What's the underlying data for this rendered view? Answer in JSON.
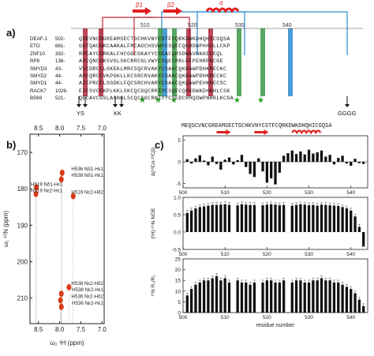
{
  "panel_a": {
    "label": "a)",
    "ruler_marks": [
      "510",
      "520",
      "530",
      "540"
    ],
    "secondary_structure": [
      "β1",
      "β2",
      "α"
    ],
    "sequences": [
      {
        "name": "DEAF-1",
        "start": "502-",
        "residues": "QSEVNCRGREAMSECTGCHKVNYCSTFCQRKDWKDHQHICGQSA"
      },
      {
        "name": "ETO",
        "start": "661-",
        "residues": "GKTQACNKCAAKALFMCAGCHSVWYCSQECQKHDWPHHSLLCKP"
      },
      {
        "name": "ZNF10",
        "start": "392-",
        "residues": "RPCAYCGRKALFHCGGCGKAYYCSEACQRSDWAVHKKECEQL"
      },
      {
        "name": "RP8",
        "start": "136-",
        "residues": "ASCQNCGKSVGLSKCRRCGLVWYCSQECRRLDFPEHRPHCGE"
      },
      {
        "name": "SMYD3",
        "start": "43-",
        "residues": "VVCDRCLLGKEKLMRCSQCRVAKYCSAKCQKKAWPDHKRECKC"
      },
      {
        "name": "SMYD2",
        "start": "44-",
        "residues": "AHCQRCFVKPGKLLKCSRCRVAKYCSAKCQKKAWPDHKRECKC"
      },
      {
        "name": "SMYD1",
        "start": "44-",
        "residues": "AICPRCFLSGDKLFQCSRCHVARYCSAKCQKQAWPEHKKECSC"
      },
      {
        "name": "RACK7",
        "start": "1026-",
        "residues": "EICSVCEKPLKKLSKCQCGQCRRIYCSQECQRKDWKDHKHLCSK"
      },
      {
        "name": "BS69",
        "start": "521-",
        "residues": "QECAVCGSLASNGLSCQCGGCRNIYYCSEDCRHQDWPNHRLKCGA"
      }
    ],
    "mutations_bottom": [
      "YS",
      "KK",
      "GGGG"
    ]
  },
  "panel_b": {
    "label": "b)",
    "x_axis_label": "ω₂ ¹H (ppm)",
    "y_axis_label": "ω₁ ¹⁵N (ppm)",
    "x_ticks": [
      "8.5",
      "8.0",
      "7.5",
      "7.0"
    ],
    "y_ticks": [
      "170",
      "180",
      "190",
      "200",
      "210"
    ],
    "peaks": [
      {
        "label": "H536 Nδ1-Hε1",
        "h": 7.94,
        "n": 175.6
      },
      {
        "label": "H538 Nδ1-Hε1",
        "h": 7.96,
        "n": 177.4
      },
      {
        "label": "H519 Nδ1-Hε1",
        "h": 8.55,
        "n": 179.6
      },
      {
        "label": "H519 Nε2-Hε1",
        "h": 8.56,
        "n": 181.4
      },
      {
        "label": "H519 Nε2-Hδ2",
        "h": 7.68,
        "n": 182.0
      },
      {
        "label": "H538 Nε2-Hδ2",
        "h": 7.78,
        "n": 207.0
      },
      {
        "label": "H538 Nε2-Hε1",
        "h": 7.96,
        "n": 208.8
      },
      {
        "label": "H536 Nε2-Hδ2",
        "h": 7.98,
        "n": 210.6
      },
      {
        "label": "H536 Nε2-Hε1",
        "h": 7.96,
        "n": 212.4
      }
    ]
  },
  "panel_c": {
    "label": "c)",
    "sequence": "MEQSCVNCGREAMSECTGCHKVNYCSTFCQRKDWKDHQHICGQSA",
    "x_label": "residue number",
    "x_ticks": [
      "500",
      "510",
      "520",
      "530",
      "540"
    ],
    "chart_data": [
      {
        "type": "bar",
        "title": "",
        "ylabel": "Δ(¹³Cα-¹³Cβ)",
        "ylim": [
          -6,
          6
        ],
        "y_ticks": [
          "5",
          "0",
          "-5"
        ],
        "x": [
          501,
          502,
          503,
          504,
          505,
          506,
          507,
          508,
          509,
          510,
          511,
          512,
          513,
          514,
          515,
          516,
          517,
          518,
          519,
          520,
          521,
          522,
          523,
          524,
          525,
          526,
          527,
          528,
          529,
          530,
          531,
          532,
          533,
          534,
          535,
          536,
          537,
          538,
          539,
          540,
          541,
          542,
          543
        ],
        "values": [
          0.6,
          -0.4,
          0.8,
          1.5,
          0.3,
          -0.8,
          1.2,
          -0.5,
          -1.8,
          0.5,
          1.0,
          -0.6,
          0.4,
          1.6,
          -1.2,
          -2.8,
          -3.5,
          0.8,
          -2.2,
          -4.8,
          -3.8,
          -5.2,
          -2.5,
          1.4,
          2.0,
          2.6,
          1.8,
          2.4,
          1.7,
          2.8,
          1.9,
          2.2,
          2.6,
          1.2,
          1.6,
          -0.6,
          0.9,
          1.4,
          -0.4,
          -0.9,
          0.7,
          -0.3,
          -0.5
        ]
      },
      {
        "type": "bar",
        "title": "",
        "ylabel": "{¹H}-¹⁵N-NOE",
        "ylim": [
          -0.5,
          1.0
        ],
        "y_ticks": [
          "1.0",
          "0.5",
          "0.0",
          "-0.5"
        ],
        "x": [
          501,
          502,
          503,
          504,
          505,
          506,
          507,
          508,
          509,
          510,
          511,
          512,
          513,
          514,
          515,
          516,
          517,
          518,
          519,
          520,
          521,
          522,
          523,
          524,
          525,
          526,
          527,
          528,
          529,
          530,
          531,
          532,
          533,
          534,
          535,
          536,
          537,
          538,
          539,
          540,
          541,
          542,
          543
        ],
        "values": [
          0.55,
          0.62,
          0.68,
          0.72,
          0.74,
          0.76,
          0.78,
          0.78,
          0.79,
          0.8,
          0.78,
          0.0,
          0.77,
          0.8,
          0.79,
          0.78,
          0.78,
          0.0,
          0.77,
          0.79,
          0.8,
          0.79,
          0.77,
          0.78,
          0.0,
          0.76,
          0.78,
          0.8,
          0.79,
          0.77,
          0.78,
          0.76,
          0.79,
          0.78,
          0.77,
          0.76,
          0.75,
          0.72,
          0.68,
          0.62,
          0.45,
          0.15,
          -0.42
        ]
      },
      {
        "type": "bar",
        "title": "",
        "ylabel": "¹⁵N R₂/R₁",
        "ylim": [
          0,
          25
        ],
        "y_ticks": [
          "25",
          "20",
          "15",
          "10",
          "5",
          "0"
        ],
        "x": [
          501,
          502,
          503,
          504,
          505,
          506,
          507,
          508,
          509,
          510,
          511,
          512,
          513,
          514,
          515,
          516,
          517,
          518,
          519,
          520,
          521,
          522,
          523,
          524,
          525,
          526,
          527,
          528,
          529,
          530,
          531,
          532,
          533,
          534,
          535,
          536,
          537,
          538,
          539,
          540,
          541,
          542,
          543
        ],
        "values": [
          8,
          11,
          13,
          14,
          15,
          15,
          16,
          17,
          15,
          16,
          14,
          0,
          15,
          14,
          14,
          13,
          14,
          0,
          14,
          15,
          15,
          14,
          14,
          15,
          0,
          14,
          15,
          15,
          14,
          14,
          15,
          15,
          16,
          15,
          15,
          14,
          14,
          13,
          12,
          11,
          9,
          6,
          3
        ]
      }
    ]
  },
  "colors": {
    "red_box": "#b0283c",
    "green_box": "#3a9a45",
    "blue_box": "#2b8bd0",
    "arrow_red": "#e02020",
    "peak_red": "#d83a1a",
    "star_green": "#22a020"
  }
}
